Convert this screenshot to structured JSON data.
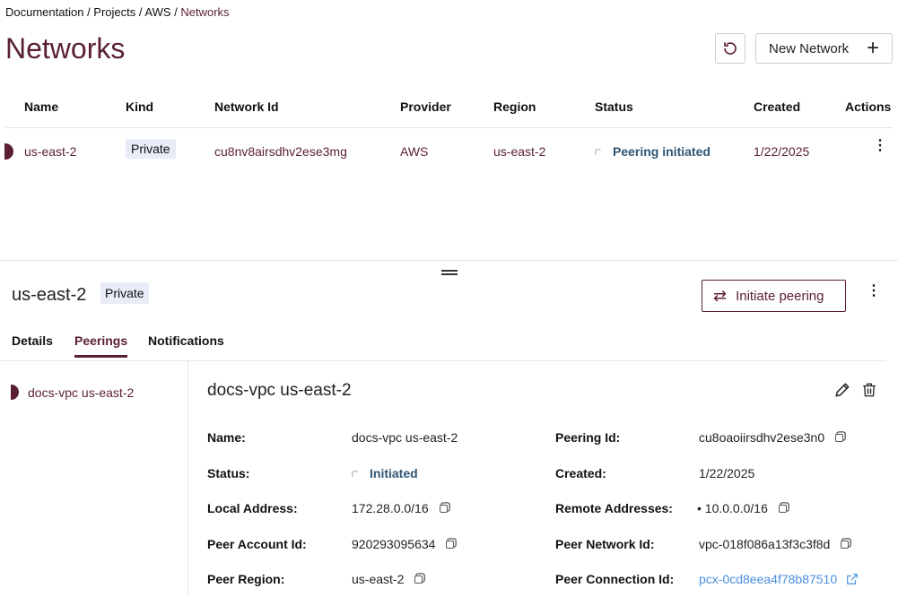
{
  "breadcrumb": {
    "items": [
      "Documentation",
      "Projects",
      "AWS"
    ],
    "current": "Networks",
    "sep": " / "
  },
  "header": {
    "title": "Networks",
    "new_label": "New Network"
  },
  "table": {
    "columns": [
      "Name",
      "Kind",
      "Network Id",
      "Provider",
      "Region",
      "Status",
      "Created",
      "Actions"
    ],
    "rows": [
      {
        "name": "us-east-2",
        "kind": "Private",
        "network_id": "cu8nv8airsdhv2ese3mg",
        "provider": "AWS",
        "region": "us-east-2",
        "status": "Peering initiated",
        "created": "1/22/2025"
      }
    ]
  },
  "detail": {
    "title": "us-east-2",
    "kind": "Private",
    "initiate_label": "Initiate peering",
    "tabs": [
      "Details",
      "Peerings",
      "Notifications"
    ],
    "active_tab": "Peerings",
    "peerings": [
      {
        "name": "docs-vpc us-east-2"
      }
    ],
    "peering": {
      "title": "docs-vpc us-east-2",
      "left": [
        {
          "label": "Name:",
          "value": "docs-vpc us-east-2"
        },
        {
          "label": "Status:",
          "value": "Initiated"
        },
        {
          "label": "Local Address:",
          "value": "172.28.0.0/16"
        },
        {
          "label": "Peer Account Id:",
          "value": "920293095634"
        },
        {
          "label": "Peer Region:",
          "value": "us-east-2"
        }
      ],
      "right": [
        {
          "label": "Peering Id:",
          "value": "cu8oaoiirsdhv2ese3n0"
        },
        {
          "label": "Created:",
          "value": "1/22/2025"
        },
        {
          "label": "Remote Addresses:",
          "value": "10.0.0.0/16"
        },
        {
          "label": "Peer Network Id:",
          "value": "vpc-018f086a13f3c3f8d"
        },
        {
          "label": "Peer Connection Id:",
          "value": "pcx-0cd8eea4f78b87510"
        }
      ]
    }
  },
  "colors": {
    "brand": "#5a1f35",
    "status": "#2f5675",
    "link": "#4a8fe0"
  }
}
